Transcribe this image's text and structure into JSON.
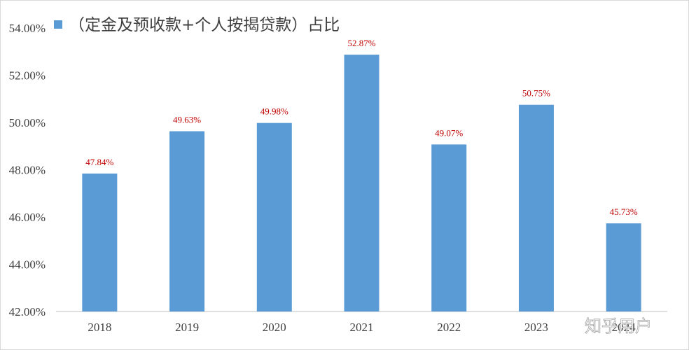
{
  "chart_data": {
    "type": "bar",
    "title": "",
    "legend": {
      "position": "top-left",
      "entries": [
        "（定金及预收款+个人按揭贷款）占比"
      ]
    },
    "series": [
      {
        "name": "（定金及预收款+个人按揭贷款）占比",
        "color": "#5b9bd5",
        "values": [
          47.84,
          49.63,
          49.98,
          52.87,
          49.07,
          50.75,
          45.73
        ]
      }
    ],
    "categories": [
      "2018",
      "2019",
      "2020",
      "2021",
      "2022",
      "2023",
      "2024"
    ],
    "data_labels": [
      "47.84%",
      "49.63%",
      "49.98%",
      "52.87%",
      "49.07%",
      "50.75%",
      "45.73%"
    ],
    "ylim": [
      42,
      54
    ],
    "yticks": [
      42,
      44,
      46,
      48,
      50,
      52,
      54
    ],
    "ytick_labels": [
      "42.00%",
      "44.00%",
      "46.00%",
      "48.00%",
      "50.00%",
      "52.00%",
      "54.00%"
    ],
    "xlabel": "",
    "ylabel": "",
    "grid": false,
    "label_color": "#c00000"
  },
  "watermark": "知乎用户"
}
